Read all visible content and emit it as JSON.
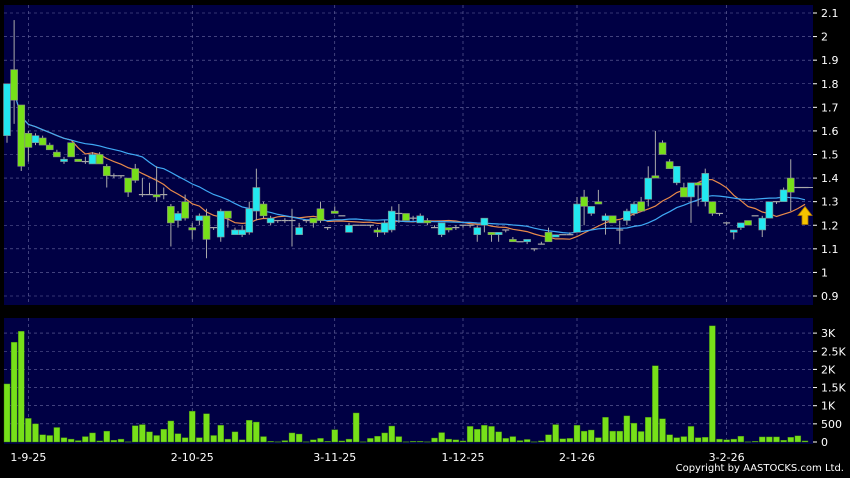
{
  "chart_data": [
    {
      "type": "candlestick",
      "panel": "price",
      "y_ticks": [
        0.9,
        1,
        1.1,
        1.2,
        1.3,
        1.4,
        1.5,
        1.6,
        1.7,
        1.8,
        1.9,
        2,
        2.1
      ],
      "y_tick_labels": [
        "0.9",
        "1",
        "1.1",
        "1.2",
        "1.3",
        "1.4",
        "1.5",
        "1.6",
        "1.7",
        "1.8",
        "1.9",
        "2",
        "2.1"
      ],
      "ylim": [
        0.9,
        2.1
      ],
      "grid": true,
      "colors": {
        "background": "#000044",
        "up": "#22e8f0",
        "down": "#77e019",
        "wick": "#aaaaaa",
        "ma_short": "#e98a4a",
        "ma_long": "#3fa9f5",
        "arrow": "#f5c400",
        "grid": "#6a6aa0"
      },
      "ohlc": [
        [
          1.58,
          1.8,
          1.55,
          1.8
        ],
        [
          1.86,
          2.07,
          1.63,
          1.73
        ],
        [
          1.71,
          1.71,
          1.43,
          1.45
        ],
        [
          1.59,
          1.6,
          1.47,
          1.53
        ],
        [
          1.55,
          1.59,
          1.54,
          1.58
        ],
        [
          1.57,
          1.58,
          1.54,
          1.54
        ],
        [
          1.54,
          1.55,
          1.52,
          1.52
        ],
        [
          1.51,
          1.52,
          1.49,
          1.49
        ],
        [
          1.47,
          1.49,
          1.46,
          1.48
        ],
        [
          1.55,
          1.55,
          1.49,
          1.49
        ],
        [
          1.48,
          1.48,
          1.47,
          1.47
        ],
        [
          1.47,
          1.49,
          1.46,
          1.47
        ],
        [
          1.46,
          1.51,
          1.46,
          1.5
        ],
        [
          1.5,
          1.51,
          1.46,
          1.46
        ],
        [
          1.45,
          1.46,
          1.36,
          1.41
        ],
        [
          1.41,
          1.42,
          1.4,
          1.41
        ],
        [
          1.41,
          1.41,
          1.4,
          1.41
        ],
        [
          1.4,
          1.4,
          1.32,
          1.34
        ],
        [
          1.44,
          1.46,
          1.38,
          1.39
        ],
        [
          1.33,
          1.4,
          1.32,
          1.33
        ],
        [
          1.33,
          1.38,
          1.33,
          1.33
        ],
        [
          1.33,
          1.45,
          1.3,
          1.32
        ],
        [
          1.33,
          1.36,
          1.31,
          1.33
        ],
        [
          1.28,
          1.29,
          1.11,
          1.21
        ],
        [
          1.22,
          1.26,
          1.19,
          1.25
        ],
        [
          1.3,
          1.33,
          1.22,
          1.23
        ],
        [
          1.19,
          1.21,
          1.14,
          1.18
        ],
        [
          1.22,
          1.25,
          1.2,
          1.24
        ],
        [
          1.24,
          1.27,
          1.06,
          1.14
        ],
        [
          1.19,
          1.19,
          1.18,
          1.19
        ],
        [
          1.15,
          1.27,
          1.13,
          1.26
        ],
        [
          1.26,
          1.26,
          1.19,
          1.23
        ],
        [
          1.16,
          1.19,
          1.16,
          1.18
        ],
        [
          1.16,
          1.2,
          1.15,
          1.18
        ],
        [
          1.17,
          1.3,
          1.16,
          1.27
        ],
        [
          1.26,
          1.44,
          1.22,
          1.36
        ],
        [
          1.29,
          1.3,
          1.23,
          1.24
        ],
        [
          1.21,
          1.24,
          1.2,
          1.23
        ],
        [
          1.22,
          1.22,
          1.21,
          1.22
        ],
        [
          1.22,
          1.23,
          1.21,
          1.22
        ],
        [
          1.22,
          1.27,
          1.11,
          1.22
        ],
        [
          1.16,
          1.21,
          1.16,
          1.19
        ],
        [
          1.22,
          1.22,
          1.21,
          1.22
        ],
        [
          1.23,
          1.23,
          1.19,
          1.21
        ],
        [
          1.27,
          1.3,
          1.21,
          1.22
        ],
        [
          1.19,
          1.19,
          1.18,
          1.19
        ],
        [
          1.26,
          1.28,
          1.25,
          1.25
        ],
        [
          1.24,
          1.24,
          1.24,
          1.24
        ],
        [
          1.17,
          1.21,
          1.17,
          1.2
        ],
        [
          1.2,
          1.2,
          1.2,
          1.2
        ],
        [
          1.2,
          1.2,
          1.2,
          1.2
        ],
        [
          1.2,
          1.2,
          1.19,
          1.2
        ],
        [
          1.18,
          1.19,
          1.15,
          1.17
        ],
        [
          1.17,
          1.22,
          1.16,
          1.21
        ],
        [
          1.18,
          1.28,
          1.17,
          1.26
        ],
        [
          1.25,
          1.29,
          1.21,
          1.25
        ],
        [
          1.25,
          1.25,
          1.22,
          1.22
        ],
        [
          1.23,
          1.24,
          1.22,
          1.23
        ],
        [
          1.21,
          1.25,
          1.21,
          1.24
        ],
        [
          1.22,
          1.23,
          1.2,
          1.21
        ],
        [
          1.19,
          1.2,
          1.19,
          1.19
        ],
        [
          1.16,
          1.21,
          1.15,
          1.21
        ],
        [
          1.19,
          1.19,
          1.17,
          1.18
        ],
        [
          1.19,
          1.2,
          1.18,
          1.19
        ],
        [
          1.2,
          1.2,
          1.19,
          1.2
        ],
        [
          1.2,
          1.2,
          1.19,
          1.2
        ],
        [
          1.16,
          1.2,
          1.13,
          1.19
        ],
        [
          1.2,
          1.23,
          1.17,
          1.23
        ],
        [
          1.17,
          1.17,
          1.13,
          1.16
        ],
        [
          1.16,
          1.17,
          1.13,
          1.17
        ],
        [
          1.18,
          1.18,
          1.17,
          1.18
        ],
        [
          1.14,
          1.15,
          1.13,
          1.13
        ],
        [
          1.13,
          1.13,
          1.13,
          1.13
        ],
        [
          1.13,
          1.14,
          1.12,
          1.14
        ],
        [
          1.1,
          1.1,
          1.09,
          1.1
        ],
        [
          1.12,
          1.13,
          1.12,
          1.12
        ],
        [
          1.17,
          1.19,
          1.13,
          1.13
        ],
        [
          1.15,
          1.16,
          1.15,
          1.16
        ],
        [
          1.16,
          1.16,
          1.16,
          1.16
        ],
        [
          1.16,
          1.17,
          1.16,
          1.16
        ],
        [
          1.17,
          1.32,
          1.17,
          1.29
        ],
        [
          1.32,
          1.35,
          1.2,
          1.28
        ],
        [
          1.25,
          1.28,
          1.24,
          1.28
        ],
        [
          1.3,
          1.35,
          1.29,
          1.29
        ],
        [
          1.22,
          1.25,
          1.16,
          1.24
        ],
        [
          1.24,
          1.24,
          1.21,
          1.21
        ],
        [
          1.18,
          1.22,
          1.12,
          1.18
        ],
        [
          1.22,
          1.27,
          1.2,
          1.26
        ],
        [
          1.25,
          1.3,
          1.24,
          1.29
        ],
        [
          1.3,
          1.32,
          1.26,
          1.26
        ],
        [
          1.31,
          1.45,
          1.28,
          1.4
        ],
        [
          1.41,
          1.6,
          1.4,
          1.4
        ],
        [
          1.55,
          1.56,
          1.5,
          1.5
        ],
        [
          1.47,
          1.48,
          1.44,
          1.44
        ],
        [
          1.38,
          1.45,
          1.37,
          1.45
        ],
        [
          1.36,
          1.38,
          1.32,
          1.32
        ],
        [
          1.32,
          1.38,
          1.21,
          1.38
        ],
        [
          1.38,
          1.38,
          1.28,
          1.37
        ],
        [
          1.3,
          1.44,
          1.28,
          1.42
        ],
        [
          1.3,
          1.3,
          1.24,
          1.25
        ],
        [
          1.25,
          1.25,
          1.24,
          1.25
        ],
        [
          1.21,
          1.21,
          1.2,
          1.21
        ],
        [
          1.17,
          1.18,
          1.14,
          1.18
        ],
        [
          1.19,
          1.21,
          1.18,
          1.21
        ],
        [
          1.22,
          1.22,
          1.2,
          1.2
        ],
        [
          1.24,
          1.24,
          1.24,
          1.24
        ],
        [
          1.18,
          1.24,
          1.15,
          1.23
        ],
        [
          1.23,
          1.3,
          1.23,
          1.3
        ],
        [
          1.3,
          1.3,
          1.29,
          1.3
        ],
        [
          1.3,
          1.36,
          1.3,
          1.35
        ],
        [
          1.4,
          1.48,
          1.26,
          1.34
        ],
        [
          1.36,
          1.36,
          1.36,
          1.36
        ],
        [
          1.36,
          1.36,
          1.36,
          1.36
        ]
      ]
    },
    {
      "type": "bar",
      "panel": "volume",
      "y_ticks": [
        0,
        500,
        1000,
        1500,
        2000,
        2500,
        3000
      ],
      "y_tick_labels": [
        "0",
        "500",
        "1K",
        "1.5K",
        "2K",
        "2.5K",
        "3K"
      ],
      "ylim": [
        0,
        3300
      ],
      "grid": true,
      "colors": {
        "bar": "#77e019",
        "background": "#000044"
      },
      "values": [
        1600,
        2750,
        3050,
        650,
        500,
        200,
        180,
        400,
        120,
        80,
        40,
        150,
        250,
        30,
        300,
        50,
        80,
        10,
        450,
        480,
        280,
        180,
        350,
        580,
        230,
        120,
        850,
        120,
        780,
        180,
        460,
        80,
        280,
        60,
        600,
        550,
        150,
        20,
        10,
        40,
        250,
        220,
        10,
        60,
        100,
        20,
        340,
        30,
        80,
        800,
        10,
        100,
        160,
        250,
        440,
        150,
        10,
        20,
        20,
        10,
        110,
        260,
        80,
        60,
        30,
        430,
        350,
        460,
        430,
        280,
        100,
        150,
        40,
        70,
        10,
        30,
        200,
        480,
        90,
        100,
        460,
        300,
        330,
        120,
        680,
        300,
        300,
        720,
        520,
        290,
        680,
        2100,
        640,
        200,
        120,
        150,
        430,
        120,
        130,
        3200,
        80,
        60,
        80,
        160,
        10,
        20,
        140,
        140,
        140,
        50,
        130,
        170,
        30
      ]
    }
  ],
  "x_axis": {
    "tick_labels": [
      "1-9-25",
      "2-10-25",
      "3-11-25",
      "1-12-25",
      "2-1-26",
      "3-2-26"
    ],
    "tick_index": [
      3,
      26,
      46,
      64,
      80,
      101
    ]
  },
  "copyright": "Copyright by AASTOCKS.com Ltd."
}
